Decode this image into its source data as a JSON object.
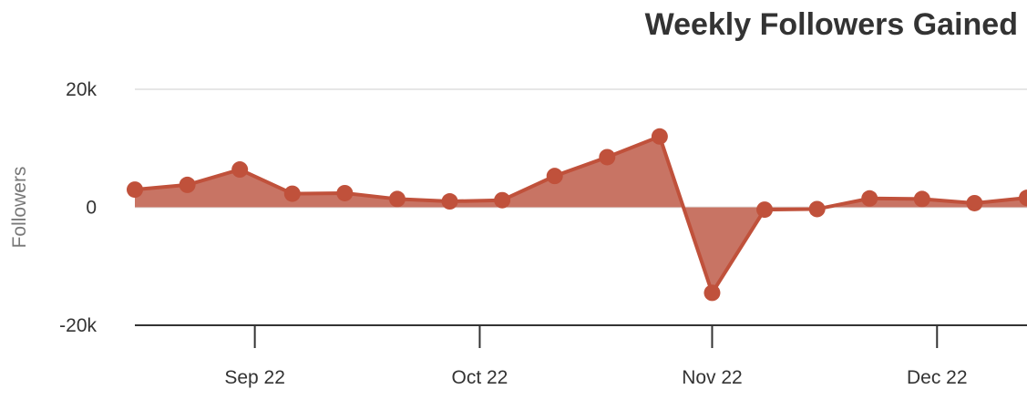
{
  "chart_data": {
    "type": "area",
    "title": "Weekly Followers Gained",
    "xlabel": "",
    "ylabel": "Followers",
    "color": "#c0513b",
    "fill_color": "#c87464",
    "grid": true,
    "ylim": [
      -20000,
      20000
    ],
    "y_ticks": [
      {
        "value": 20000,
        "label": "20k"
      },
      {
        "value": 0,
        "label": "0"
      },
      {
        "value": -20000,
        "label": "-20k"
      }
    ],
    "x_ticks": [
      {
        "date": "2022-09-22",
        "label": "Sep 22"
      },
      {
        "date": "2022-10-22",
        "label": "Oct 22"
      },
      {
        "date": "2022-11-22",
        "label": "Nov 22"
      },
      {
        "date": "2022-12-22",
        "label": "Dec 22"
      }
    ],
    "xlim": [
      "2022-09-06",
      "2022-12-32"
    ],
    "points": [
      {
        "x": "2022-09-06",
        "y": 3000
      },
      {
        "x": "2022-09-13",
        "y": 3800
      },
      {
        "x": "2022-09-20",
        "y": 6400
      },
      {
        "x": "2022-09-27",
        "y": 2300
      },
      {
        "x": "2022-10-04",
        "y": 2400
      },
      {
        "x": "2022-10-11",
        "y": 1400
      },
      {
        "x": "2022-10-18",
        "y": 1000
      },
      {
        "x": "2022-10-25",
        "y": 1200
      },
      {
        "x": "2022-11-01",
        "y": 5300
      },
      {
        "x": "2022-11-08",
        "y": 8500
      },
      {
        "x": "2022-11-15",
        "y": 12000
      },
      {
        "x": "2022-11-22",
        "y": -14500
      },
      {
        "x": "2022-11-29",
        "y": -400
      },
      {
        "x": "2022-12-06",
        "y": -300
      },
      {
        "x": "2022-12-13",
        "y": 1500
      },
      {
        "x": "2022-12-20",
        "y": 1400
      },
      {
        "x": "2022-12-27",
        "y": 700
      },
      {
        "x": "2023-01-03",
        "y": 1600
      }
    ]
  }
}
